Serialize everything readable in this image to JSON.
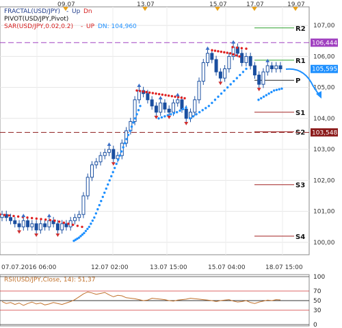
{
  "legend": {
    "fractal_name": "FRACTAL(USD/JPY)",
    "fractal_up": "Up",
    "fractal_dn": "Dn",
    "pivot_name": "PIVOT(USD/JPY,Pivot)",
    "sar_name": "SAR(USD/JPY,0.02,0.2)",
    "sar_up": "UP",
    "sar_dn": "DN: 104,960"
  },
  "top_dates": [
    "09.07",
    "13.07",
    "15.07",
    "17.07",
    "19.07"
  ],
  "x_tick_labels": [
    "07.07.2016 06:00",
    "12.07 02:00",
    "13.07 15:00",
    "15.07 04:00",
    "18.07 15:00"
  ],
  "colors": {
    "candle": "#1a4fa0",
    "sar_up": "#1e90ff",
    "sar_dn": "#e02020",
    "r2": "#2ca02c",
    "r1": "#2ca02c",
    "pivot": "#222222",
    "support": "#a02020",
    "level_dashed": "#8b1a1a",
    "level_purple": "#a040c0",
    "current_price": "#1e90ff",
    "rsi": "#c0702a"
  },
  "chart_data": {
    "type": "line",
    "title": "",
    "xlabel": "",
    "ylabel": "",
    "ylim": [
      99.6,
      107.6
    ],
    "y_ticks": [
      "107,00",
      "106,00",
      "105,00",
      "104,00",
      "103,00",
      "102,00",
      "101,00",
      "100,00"
    ],
    "series": [
      {
        "name": "USD/JPY",
        "values": [
          100.9,
          100.8,
          100.7,
          100.6,
          100.5,
          100.7,
          100.5,
          100.6,
          100.4,
          100.6,
          100.5,
          100.7,
          100.6,
          100.4,
          100.6,
          100.5,
          100.7,
          100.8,
          100.9,
          101.5,
          102.1,
          102.5,
          102.6,
          102.8,
          102.9,
          103.0,
          102.7,
          102.8,
          103.2,
          103.6,
          103.9,
          104.6,
          104.9,
          104.8,
          104.6,
          104.4,
          104.2,
          104.5,
          104.3,
          104.2,
          104.5,
          104.6,
          104.3,
          104.0,
          104.2,
          104.6,
          105.2,
          105.8,
          106.1,
          105.9,
          105.5,
          105.3,
          105.6,
          106.0,
          106.3,
          106.1,
          105.8,
          106.0,
          105.7,
          105.4,
          105.1,
          105.5,
          105.7,
          105.6,
          105.7,
          105.6
        ]
      }
    ],
    "sar": {
      "down_segments": [
        [
          100.9,
          100.85,
          100.8,
          100.75,
          100.7,
          100.6,
          100.5
        ],
        [
          104.9,
          104.85,
          104.8,
          104.75,
          104.7,
          104.65
        ],
        [
          106.2,
          106.15,
          106.1,
          106.0
        ],
        [
          106.3,
          106.25
        ]
      ],
      "up_segments": [
        [
          100.05,
          100.15,
          100.3,
          100.5,
          100.8,
          101.2,
          101.6,
          102.0,
          102.4,
          102.8,
          103.2,
          103.6,
          104.0,
          104.4
        ],
        [
          104.0,
          104.1,
          104.2,
          104.35
        ],
        [
          104.0,
          104.2,
          104.4,
          104.7,
          105.0,
          105.3,
          105.6
        ],
        [
          104.6,
          104.75,
          104.9,
          104.96
        ]
      ]
    },
    "pivot_levels": {
      "R2": 106.92,
      "R1": 105.88,
      "P": 105.23,
      "S1": 104.2,
      "S2": 103.57,
      "S3": 101.86,
      "S4": 100.2
    },
    "levels": {
      "resistance_dashed": 106.444,
      "support_dashed": 103.548
    },
    "price_labels": [
      "106,444",
      "105,595",
      "103,548"
    ],
    "current_price": 105.595,
    "rsi": {
      "label": "RSI(USD/JPY,Close, 14): 51,37",
      "value": 51.37,
      "levels": [
        100,
        70,
        50,
        30,
        0
      ],
      "tick_labels": [
        "100",
        "70",
        "50",
        "30",
        "0"
      ],
      "values": [
        48,
        44,
        46,
        42,
        45,
        40,
        44,
        47,
        43,
        45,
        41,
        43,
        46,
        44,
        42,
        45,
        48,
        52,
        58,
        64,
        68,
        66,
        63,
        65,
        67,
        62,
        58,
        61,
        60,
        56,
        55,
        54,
        52,
        50,
        51,
        55,
        54,
        53,
        52,
        50,
        49,
        51,
        52,
        53,
        55,
        54,
        53,
        52,
        51,
        50,
        48,
        50,
        51,
        52,
        49,
        47,
        48,
        50,
        46,
        44,
        47,
        49,
        51,
        50,
        52,
        51.37
      ]
    }
  }
}
